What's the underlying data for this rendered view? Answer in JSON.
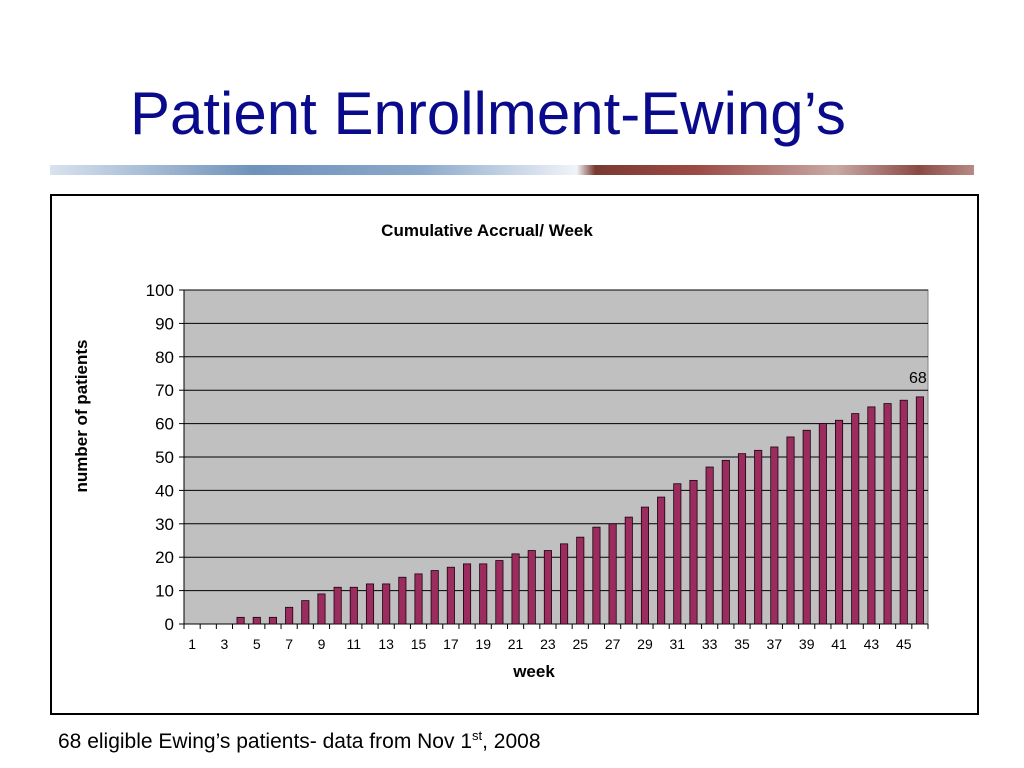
{
  "slide": {
    "title": "Patient Enrollment-Ewing’s",
    "footnote": {
      "before_sup": "68 eligible Ewing’s patients- data from Nov 1",
      "sup": "st",
      "after_sup": ", 2008"
    }
  },
  "colors": {
    "title": "#0a0a8c",
    "plot_background": "#c0c0c0",
    "bar_fill": "#9b2d5e",
    "bar_stroke": "#1a0010",
    "grid": "#000000"
  },
  "chart_data": {
    "type": "bar",
    "title": "Cumulative Accrual/ Week",
    "xlabel": "week",
    "ylabel": "number of patients",
    "ylim": [
      0,
      100
    ],
    "yticks": [
      0,
      10,
      20,
      30,
      40,
      50,
      60,
      70,
      80,
      90,
      100
    ],
    "grid": true,
    "legend": "none",
    "categories": [
      1,
      2,
      3,
      4,
      5,
      6,
      7,
      8,
      9,
      10,
      11,
      12,
      13,
      14,
      15,
      16,
      17,
      18,
      19,
      20,
      21,
      22,
      23,
      24,
      25,
      26,
      27,
      28,
      29,
      30,
      31,
      32,
      33,
      34,
      35,
      36,
      37,
      38,
      39,
      40,
      41,
      42,
      43,
      44,
      45,
      46
    ],
    "x_tick_labels": [
      "1",
      "3",
      "5",
      "7",
      "9",
      "11",
      "13",
      "15",
      "17",
      "19",
      "21",
      "23",
      "25",
      "27",
      "29",
      "31",
      "33",
      "35",
      "37",
      "39",
      "41",
      "43",
      "45"
    ],
    "values": [
      0,
      0,
      0,
      2,
      2,
      2,
      5,
      7,
      9,
      11,
      11,
      12,
      12,
      14,
      15,
      16,
      17,
      18,
      18,
      19,
      21,
      22,
      22,
      24,
      26,
      29,
      30,
      32,
      35,
      38,
      42,
      43,
      47,
      49,
      51,
      52,
      53,
      56,
      58,
      60,
      61,
      63,
      65,
      66,
      67,
      68
    ],
    "data_labels": [
      {
        "category": 46,
        "text": "68"
      }
    ]
  }
}
